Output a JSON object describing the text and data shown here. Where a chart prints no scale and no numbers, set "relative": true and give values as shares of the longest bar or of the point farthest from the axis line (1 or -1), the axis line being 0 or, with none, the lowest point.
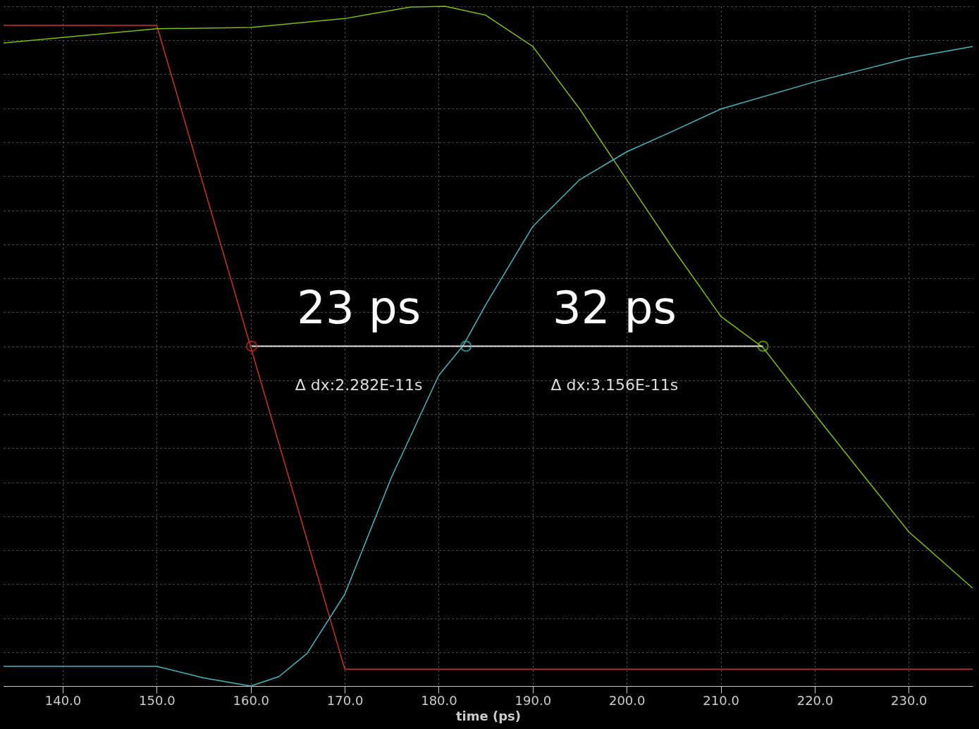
{
  "chart_data": {
    "type": "line",
    "relative": true,
    "xlabel": "time (ps)",
    "xlim": [
      133.7,
      236.8
    ],
    "xticks": [
      {
        "value": 140,
        "label": "140.0"
      },
      {
        "value": 150,
        "label": "150.0"
      },
      {
        "value": 160,
        "label": "160.0"
      },
      {
        "value": 170,
        "label": "170.0"
      },
      {
        "value": 180,
        "label": "180.0"
      },
      {
        "value": 190,
        "label": "190.0"
      },
      {
        "value": 200,
        "label": "200.0"
      },
      {
        "value": 210,
        "label": "210.0"
      },
      {
        "value": 220,
        "label": "220.0"
      },
      {
        "value": 230,
        "label": "230.0"
      }
    ],
    "grid": true,
    "tick_labels": "x",
    "series": [
      {
        "color": "#d03020",
        "x": [
          133.7,
          150,
          170,
          236.8
        ],
        "values": [
          0.972,
          0.972,
          0.025,
          0.025
        ]
      },
      {
        "color": "#7cc000",
        "x": [
          133.7,
          150,
          160,
          170,
          177,
          180.7,
          185,
          190,
          195,
          200,
          205,
          210,
          214.5,
          220,
          225,
          230,
          236.8
        ],
        "values": [
          0.946,
          0.967,
          0.969,
          0.982,
          0.999,
          1,
          0.987,
          0.941,
          0.849,
          0.745,
          0.642,
          0.544,
          0.498,
          0.4,
          0.313,
          0.227,
          0.144
        ]
      },
      {
        "color": "#40b8c0",
        "x": [
          133.7,
          150,
          155,
          160,
          163,
          166,
          170,
          175,
          180,
          182.6,
          185,
          190,
          195,
          200,
          205,
          210,
          220,
          230,
          236.8
        ],
        "values": [
          0.029,
          0.029,
          0.012,
          0,
          0.014,
          0.048,
          0.135,
          0.308,
          0.457,
          0.501,
          0.561,
          0.676,
          0.745,
          0.786,
          0.817,
          0.849,
          0.889,
          0.924,
          0.941
        ]
      },
      {
        "type": "scatter",
        "marker": "circle",
        "colors": [
          "#d03020",
          "#40b8c0",
          "#7cc000"
        ],
        "x": [
          160.1,
          182.9,
          214.5
        ],
        "values": [
          0.5,
          0.5,
          0.5
        ]
      }
    ],
    "annotations": [
      "23 ps",
      "32 ps",
      "Δ dx:2.282E-11s",
      "Δ dx:3.156E-11s"
    ]
  }
}
